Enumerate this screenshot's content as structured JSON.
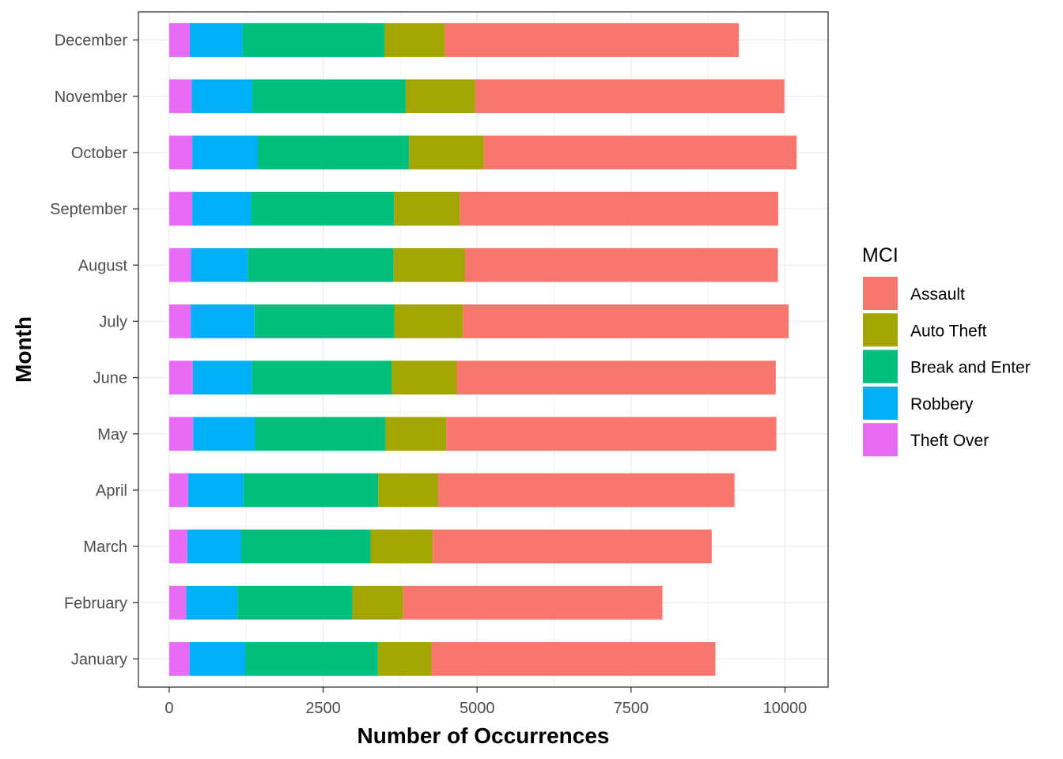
{
  "chart_data": {
    "type": "bar",
    "orientation": "horizontal",
    "stacked": true,
    "title": "",
    "xlabel": "Number of Occurrences",
    "ylabel": "Month",
    "xlim": [
      -500,
      10700
    ],
    "xticks": [
      0,
      2500,
      5000,
      7500,
      10000
    ],
    "grid": true,
    "legend_position": "right",
    "legend_title": "MCI",
    "categories": [
      "January",
      "February",
      "March",
      "April",
      "May",
      "June",
      "July",
      "August",
      "September",
      "October",
      "November",
      "December"
    ],
    "series": [
      {
        "name": "Theft Over",
        "color": "#E76BF3",
        "values": [
          330,
          275,
          295,
          310,
          390,
          385,
          350,
          355,
          375,
          375,
          365,
          335
        ]
      },
      {
        "name": "Robbery",
        "color": "#00B0F6",
        "values": [
          910,
          835,
          875,
          895,
          1005,
          960,
          1035,
          920,
          955,
          1065,
          985,
          855
        ]
      },
      {
        "name": "Break and Enter",
        "color": "#00BF7D",
        "values": [
          2150,
          1865,
          2100,
          2190,
          2120,
          2270,
          2270,
          2370,
          2320,
          2455,
          2490,
          2310
        ]
      },
      {
        "name": "Auto Theft",
        "color": "#A3A500",
        "values": [
          870,
          825,
          1010,
          975,
          985,
          1055,
          1115,
          1160,
          1070,
          1215,
          1130,
          980
        ]
      },
      {
        "name": "Assault",
        "color": "#F8766D",
        "values": [
          4610,
          4210,
          4530,
          4810,
          5360,
          5180,
          5290,
          5080,
          5170,
          5080,
          5020,
          4770
        ]
      }
    ],
    "legend_order": [
      "Assault",
      "Auto Theft",
      "Break and Enter",
      "Robbery",
      "Theft Over"
    ]
  }
}
